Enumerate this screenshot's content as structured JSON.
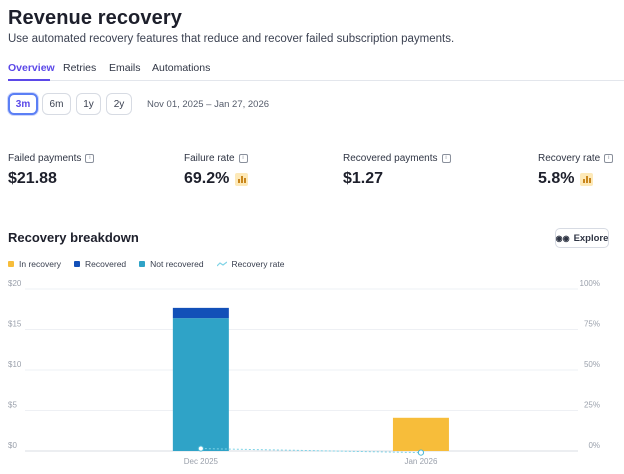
{
  "header": {
    "title": "Revenue recovery",
    "subtitle": "Use automated recovery features that reduce and recover failed subscription payments."
  },
  "tabs": [
    {
      "label": "Overview",
      "active": true
    },
    {
      "label": "Retries",
      "active": false
    },
    {
      "label": "Emails",
      "active": false
    },
    {
      "label": "Automations",
      "active": false
    }
  ],
  "range": {
    "options": [
      "3m",
      "6m",
      "1y",
      "2y"
    ],
    "selected": "3m",
    "date_range": "Nov 01, 2025 – Jan 27, 2026"
  },
  "metrics": [
    {
      "label": "Failed payments",
      "value": "$21.88",
      "has_chart_icon": false
    },
    {
      "label": "Failure rate",
      "value": "69.2%",
      "has_chart_icon": true
    },
    {
      "label": "Recovered payments",
      "value": "$1.27",
      "has_chart_icon": false
    },
    {
      "label": "Recovery rate",
      "value": "5.8%",
      "has_chart_icon": true
    }
  ],
  "breakdown": {
    "title": "Recovery breakdown",
    "explore_label": "Explore",
    "legend": [
      {
        "label": "In recovery",
        "color": "#f7bd3a",
        "kind": "bar"
      },
      {
        "label": "Recovered",
        "color": "#1250b8",
        "kind": "bar"
      },
      {
        "label": "Not recovered",
        "color": "#2fa3c7",
        "kind": "bar"
      },
      {
        "label": "Recovery rate",
        "color": "#7fd3e6",
        "kind": "line"
      }
    ]
  },
  "chart_data": {
    "type": "bar",
    "categories": [
      "Dec 2025",
      "Jan 2026"
    ],
    "series": [
      {
        "name": "Not recovered",
        "values": [
          16.4,
          0
        ],
        "color": "#2fa3c7"
      },
      {
        "name": "Recovered",
        "values": [
          1.27,
          0
        ],
        "color": "#1250b8"
      },
      {
        "name": "In recovery",
        "values": [
          0,
          4.1
        ],
        "color": "#f7bd3a"
      }
    ],
    "line_series": {
      "name": "Recovery rate",
      "values": [
        1.5,
        -1
      ],
      "color": "#7fd3e6"
    },
    "ylim": [
      0,
      20
    ],
    "y2lim": [
      0,
      100
    ],
    "y_ticks": [
      "$0",
      "$5",
      "$10",
      "$15",
      "$20"
    ],
    "y2_ticks": [
      "0%",
      "25%",
      "50%",
      "75%",
      "100%"
    ],
    "stacked": true,
    "grid": true
  }
}
